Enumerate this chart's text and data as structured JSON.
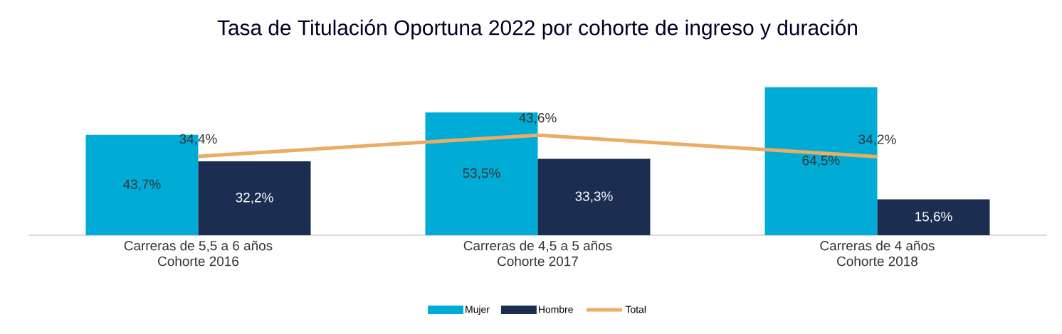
{
  "chart_data": {
    "type": "bar",
    "title": "Tasa de Titulación Oportuna 2022 por cohorte de ingreso y duración",
    "categories": [
      "Carreras de 5,5 a 6 años\nCohorte 2016",
      "Carreras de 4,5 a 5 años\nCohorte 2017",
      "Carreras de 4 años\nCohorte 2018"
    ],
    "series": [
      {
        "name": "Mujer",
        "color": "#00acd6",
        "values": [
          43.7,
          53.5,
          64.5
        ],
        "value_labels": [
          "43,7%",
          "53,5%",
          "64,5%"
        ]
      },
      {
        "name": "Hombre",
        "color": "#1c2d52",
        "values": [
          32.2,
          33.3,
          15.6
        ],
        "value_labels": [
          "32,2%",
          "33,3%",
          "15,6%"
        ]
      },
      {
        "name": "Total",
        "type": "line",
        "color": "#e9ad63",
        "values": [
          34.4,
          43.6,
          34.2
        ],
        "value_labels": [
          "34,4%",
          "43,6%",
          "34,2%"
        ]
      }
    ],
    "legend": "bottom",
    "grid": false
  }
}
